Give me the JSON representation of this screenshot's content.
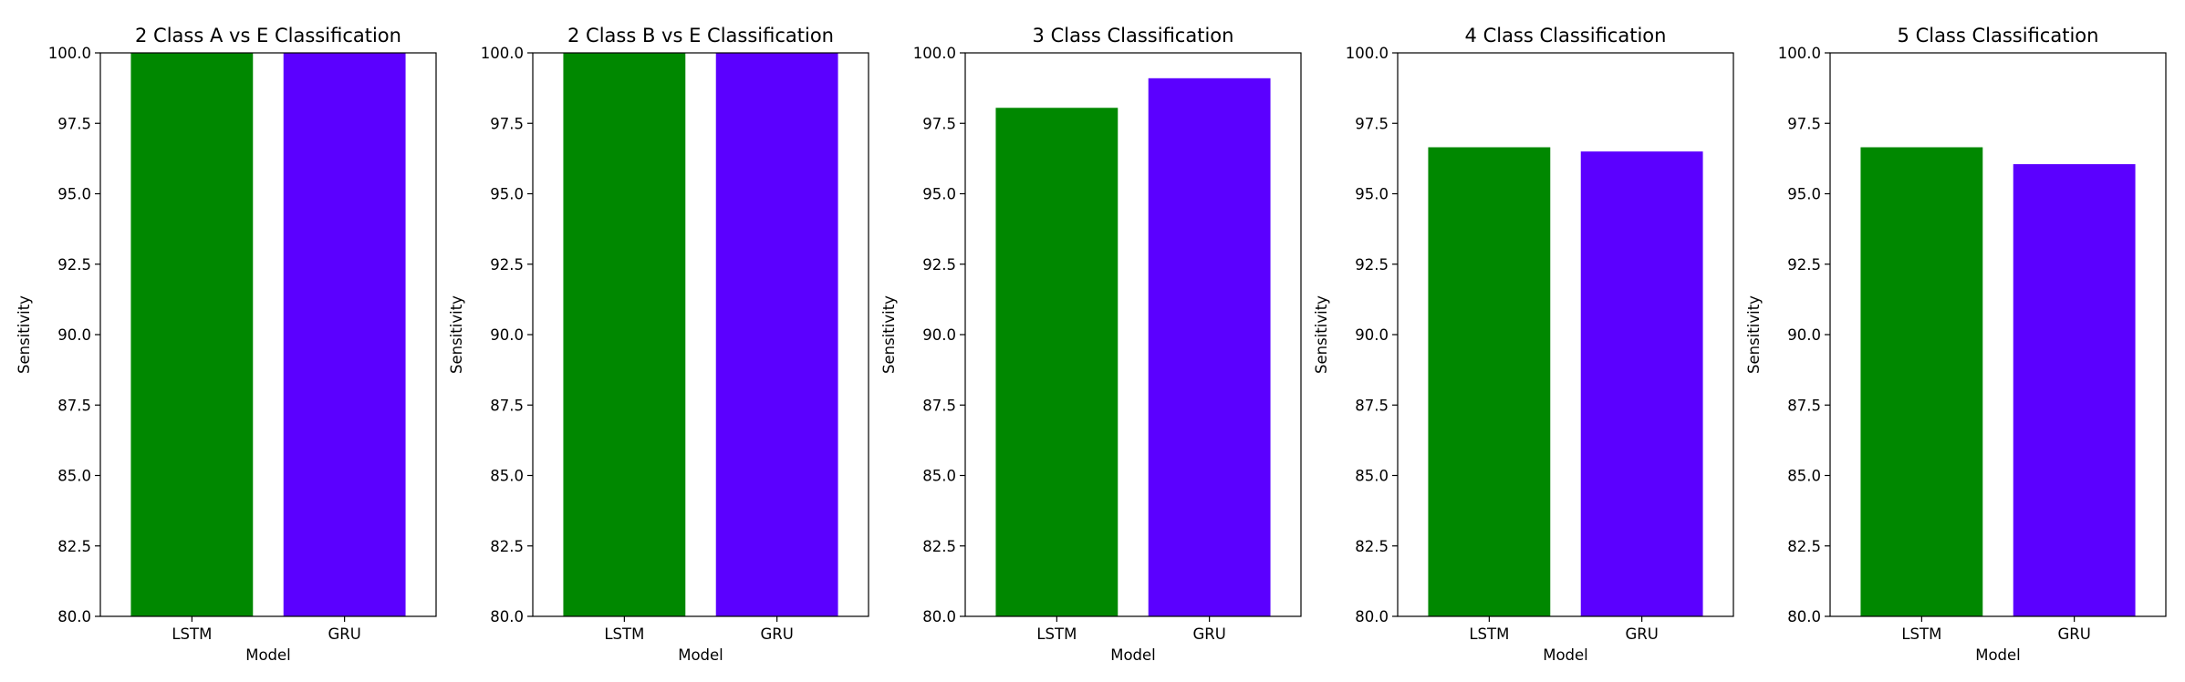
{
  "chart_data": [
    {
      "type": "bar",
      "title": "2 Class A vs E Classification",
      "xlabel": "Model",
      "ylabel": "Sensitivity",
      "ylim": [
        80,
        100
      ],
      "yticks": [
        "80.0",
        "82.5",
        "85.0",
        "87.5",
        "90.0",
        "92.5",
        "95.0",
        "97.5",
        "100.0"
      ],
      "categories": [
        "LSTM",
        "GRU"
      ],
      "values": [
        100,
        100
      ],
      "colors": [
        "#008800",
        "#5b00ff"
      ],
      "grid": false
    },
    {
      "type": "bar",
      "title": "2 Class B vs E Classification",
      "xlabel": "Model",
      "ylabel": "Sensitivity",
      "ylim": [
        80,
        100
      ],
      "yticks": [
        "80.0",
        "82.5",
        "85.0",
        "87.5",
        "90.0",
        "92.5",
        "95.0",
        "97.5",
        "100.0"
      ],
      "categories": [
        "LSTM",
        "GRU"
      ],
      "values": [
        100,
        100
      ],
      "colors": [
        "#008800",
        "#5b00ff"
      ],
      "grid": false
    },
    {
      "type": "bar",
      "title": "3 Class Classification",
      "xlabel": "Model",
      "ylabel": "Sensitivity",
      "ylim": [
        80,
        100
      ],
      "yticks": [
        "80.0",
        "82.5",
        "85.0",
        "87.5",
        "90.0",
        "92.5",
        "95.0",
        "97.5",
        "100.0"
      ],
      "categories": [
        "LSTM",
        "GRU"
      ],
      "values": [
        98.05,
        99.1
      ],
      "colors": [
        "#008800",
        "#5b00ff"
      ],
      "grid": false
    },
    {
      "type": "bar",
      "title": "4 Class Classification",
      "xlabel": "Model",
      "ylabel": "Sensitivity",
      "ylim": [
        80,
        100
      ],
      "yticks": [
        "80.0",
        "82.5",
        "85.0",
        "87.5",
        "90.0",
        "92.5",
        "95.0",
        "97.5",
        "100.0"
      ],
      "categories": [
        "LSTM",
        "GRU"
      ],
      "values": [
        96.65,
        96.5
      ],
      "colors": [
        "#008800",
        "#5b00ff"
      ],
      "grid": false
    },
    {
      "type": "bar",
      "title": "5 Class Classification",
      "xlabel": "Model",
      "ylabel": "Sensitivity",
      "ylim": [
        80,
        100
      ],
      "yticks": [
        "80.0",
        "82.5",
        "85.0",
        "87.5",
        "90.0",
        "92.5",
        "95.0",
        "97.5",
        "100.0"
      ],
      "categories": [
        "LSTM",
        "GRU"
      ],
      "values": [
        96.65,
        96.05
      ],
      "colors": [
        "#008800",
        "#5b00ff"
      ],
      "grid": false
    }
  ]
}
